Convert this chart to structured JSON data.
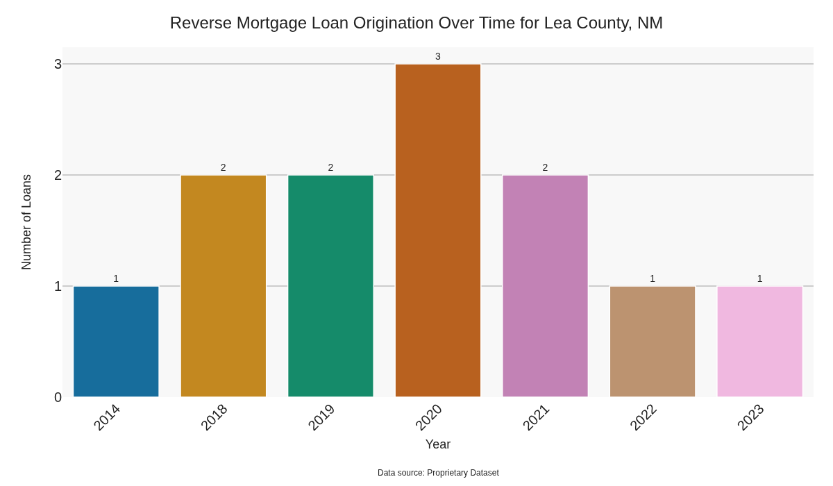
{
  "chart_data": {
    "type": "bar",
    "title": "Reverse Mortgage Loan Origination Over Time for Lea County, NM",
    "xlabel": "Year",
    "ylabel": "Number of Loans",
    "categories": [
      "2014",
      "2018",
      "2019",
      "2020",
      "2021",
      "2022",
      "2023"
    ],
    "values": [
      1,
      2,
      2,
      3,
      2,
      1,
      1
    ],
    "colors": [
      "#176d9c",
      "#c38820",
      "#158b6a",
      "#b8611f",
      "#c282b5",
      "#bc9370",
      "#f0b8e0"
    ],
    "ylim": [
      0,
      3.15
    ],
    "yticks": [
      0,
      1,
      2,
      3
    ],
    "grid": "y",
    "data_labels": true,
    "annotations": [
      "Data source: Proprietary Dataset"
    ]
  }
}
